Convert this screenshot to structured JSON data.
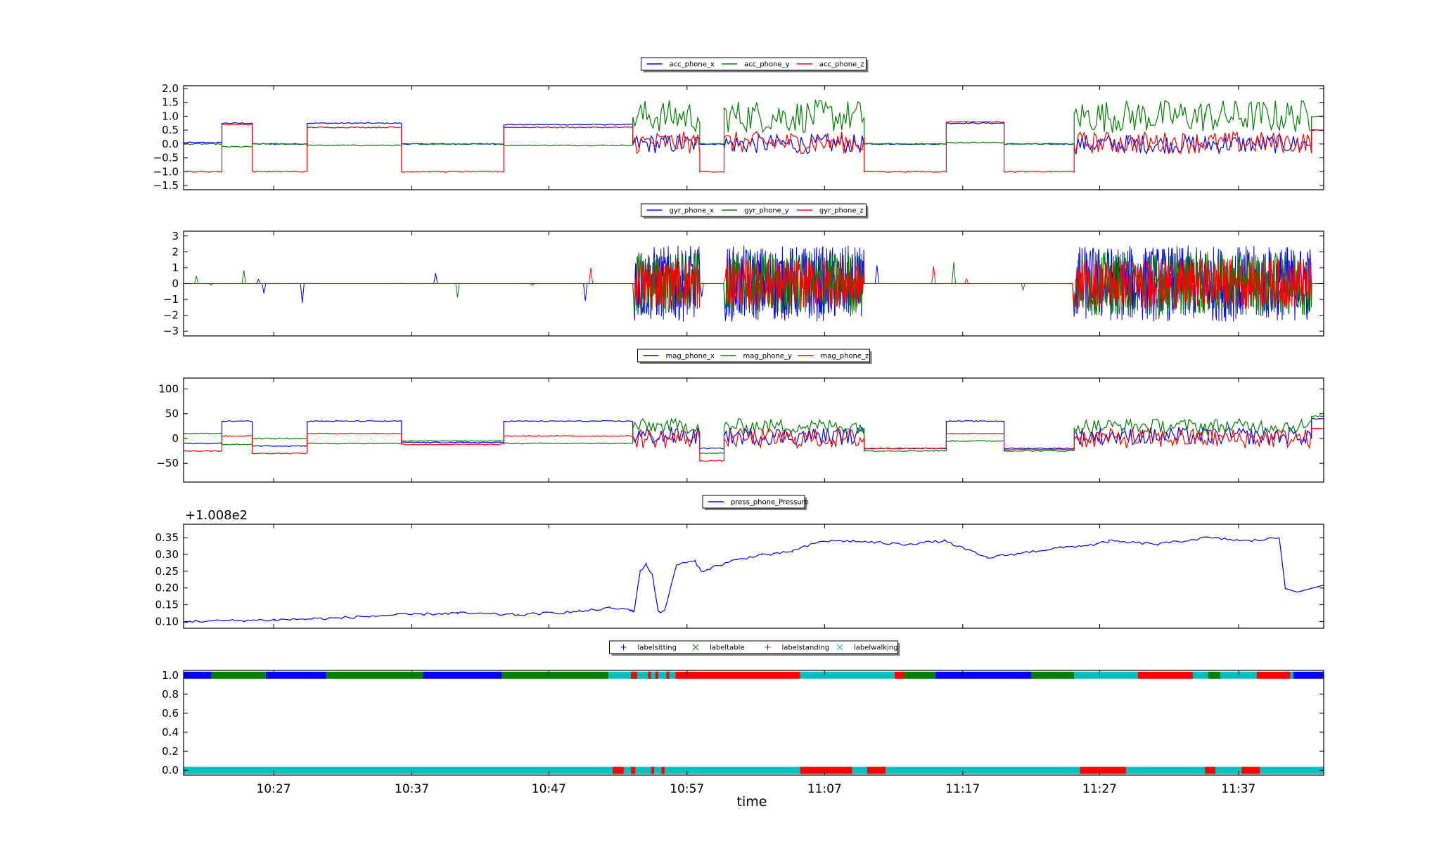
{
  "chart_data": [
    {
      "type": "line",
      "series": [
        {
          "name": "acc_phone_x",
          "color": "#0000ff",
          "segments": [
            [
              0,
              6.3,
              0.05
            ],
            [
              6.3,
              11.3,
              0.75
            ],
            [
              11.3,
              20.3,
              0.0
            ],
            [
              20.3,
              35.8,
              0.75
            ],
            [
              35.8,
              52.6,
              0.0
            ],
            [
              52.6,
              73.8,
              0.7
            ],
            [
              73.8,
              84.8,
              "active"
            ],
            [
              84.8,
              88.8,
              0.0
            ],
            [
              88.8,
              111.8,
              "active"
            ],
            [
              111.8,
              125.3,
              0.0
            ],
            [
              125.3,
              134.8,
              0.75
            ],
            [
              134.8,
              146.3,
              0.0
            ],
            [
              146.3,
              167.8,
              "active"
            ],
            [
              167.8,
              185.3,
              "active"
            ],
            [
              185.3,
              187.3,
              0.5
            ]
          ]
        },
        {
          "name": "acc_phone_y",
          "color": "#008000",
          "segments": [
            [
              0,
              6.3,
              0.0
            ],
            [
              6.3,
              11.3,
              -0.1
            ],
            [
              11.3,
              20.3,
              0.0
            ],
            [
              20.3,
              35.8,
              -0.05
            ],
            [
              35.8,
              52.6,
              0.0
            ],
            [
              52.6,
              73.8,
              -0.05
            ],
            [
              73.8,
              84.8,
              "active"
            ],
            [
              84.8,
              88.8,
              0.0
            ],
            [
              88.8,
              111.8,
              "active"
            ],
            [
              111.8,
              125.3,
              0.0
            ],
            [
              125.3,
              134.8,
              0.05
            ],
            [
              134.8,
              146.3,
              0.0
            ],
            [
              146.3,
              167.8,
              "active"
            ],
            [
              167.8,
              185.3,
              "active"
            ],
            [
              185.3,
              187.3,
              1.0
            ]
          ]
        },
        {
          "name": "acc_phone_z",
          "color": "#ff0000",
          "segments": [
            [
              0,
              6.3,
              -1.0
            ],
            [
              6.3,
              11.3,
              0.7
            ],
            [
              11.3,
              20.3,
              -1.0
            ],
            [
              20.3,
              35.8,
              0.6
            ],
            [
              35.8,
              52.6,
              -1.0
            ],
            [
              52.6,
              73.8,
              0.6
            ],
            [
              73.8,
              84.8,
              "active"
            ],
            [
              84.8,
              88.8,
              -1.0
            ],
            [
              88.8,
              111.8,
              "active"
            ],
            [
              111.8,
              125.3,
              -1.0
            ],
            [
              125.3,
              134.8,
              0.8
            ],
            [
              134.8,
              146.3,
              -1.0
            ],
            [
              146.3,
              167.8,
              "active"
            ],
            [
              167.8,
              185.3,
              "active"
            ],
            [
              185.3,
              187.3,
              0.5
            ]
          ]
        }
      ],
      "ylim": [
        -1.65,
        2.1
      ],
      "yticks": [
        "2.0",
        "1.5",
        "1.0",
        "0.5",
        "0.0",
        "−0.5",
        "−1.0",
        "−1.5"
      ],
      "ytick_values": [
        2.0,
        1.5,
        1.0,
        0.5,
        0.0,
        -0.5,
        -1.0,
        -1.5
      ],
      "legend_placement": "top-center"
    },
    {
      "type": "line",
      "series": [
        {
          "name": "gyr_phone_x",
          "color": "#0000ff"
        },
        {
          "name": "gyr_phone_y",
          "color": "#008000"
        },
        {
          "name": "gyr_phone_z",
          "color": "#ff0000"
        }
      ],
      "active_ranges": [
        [
          73.8,
          84.8
        ],
        [
          88.8,
          111.8
        ],
        [
          146.3,
          167.8
        ],
        [
          167.8,
          185.3
        ]
      ],
      "ylim": [
        -3.3,
        3.3
      ],
      "yticks": [
        "3",
        "2",
        "1",
        "0",
        "−1",
        "−2",
        "−3"
      ],
      "ytick_values": [
        3,
        2,
        1,
        0,
        -1,
        -2,
        -3
      ],
      "legend_placement": "top-center"
    },
    {
      "type": "line",
      "series": [
        {
          "name": "mag_phone_x",
          "color": "#0000ff",
          "segments": [
            [
              0,
              6.3,
              -10
            ],
            [
              6.3,
              11.3,
              35
            ],
            [
              11.3,
              20.3,
              -15
            ],
            [
              20.3,
              35.8,
              35
            ],
            [
              35.8,
              52.6,
              -8
            ],
            [
              52.6,
              73.8,
              35
            ],
            [
              73.8,
              84.8,
              "active"
            ],
            [
              84.8,
              88.8,
              -20
            ],
            [
              88.8,
              111.8,
              "active"
            ],
            [
              111.8,
              125.3,
              -20
            ],
            [
              125.3,
              134.8,
              35
            ],
            [
              134.8,
              146.3,
              -20
            ],
            [
              146.3,
              167.8,
              "active"
            ],
            [
              167.8,
              185.3,
              "active"
            ],
            [
              185.3,
              187.3,
              40
            ]
          ]
        },
        {
          "name": "mag_phone_y",
          "color": "#008000",
          "segments": [
            [
              0,
              6.3,
              10
            ],
            [
              6.3,
              11.3,
              -12
            ],
            [
              11.3,
              20.3,
              0
            ],
            [
              20.3,
              35.8,
              -10
            ],
            [
              35.8,
              52.6,
              -5
            ],
            [
              52.6,
              73.8,
              -10
            ],
            [
              73.8,
              84.8,
              "active"
            ],
            [
              84.8,
              88.8,
              -30
            ],
            [
              88.8,
              111.8,
              "active"
            ],
            [
              111.8,
              125.3,
              -25
            ],
            [
              125.3,
              134.8,
              -5
            ],
            [
              134.8,
              146.3,
              -25
            ],
            [
              146.3,
              167.8,
              "active"
            ],
            [
              167.8,
              185.3,
              "active"
            ],
            [
              185.3,
              187.3,
              45
            ]
          ]
        },
        {
          "name": "mag_phone_z",
          "color": "#ff0000",
          "segments": [
            [
              0,
              6.3,
              -25
            ],
            [
              6.3,
              11.3,
              5
            ],
            [
              11.3,
              20.3,
              -30
            ],
            [
              20.3,
              35.8,
              10
            ],
            [
              35.8,
              52.6,
              -12
            ],
            [
              52.6,
              73.8,
              5
            ],
            [
              73.8,
              84.8,
              "active"
            ],
            [
              84.8,
              88.8,
              -45
            ],
            [
              88.8,
              111.8,
              "active"
            ],
            [
              111.8,
              125.3,
              -20
            ],
            [
              125.3,
              134.8,
              10
            ],
            [
              134.8,
              146.3,
              -22
            ],
            [
              146.3,
              167.8,
              "active"
            ],
            [
              167.8,
              185.3,
              "active"
            ],
            [
              185.3,
              187.3,
              20
            ]
          ]
        }
      ],
      "ylim": [
        -88,
        122
      ],
      "yticks": [
        "100",
        "50",
        "0",
        "−50"
      ],
      "ytick_values": [
        100,
        50,
        0,
        -50
      ],
      "legend_placement": "top-center"
    },
    {
      "type": "line",
      "series": [
        {
          "name": "press_phone_Pressure",
          "color": "#0000ff",
          "x": [
            0,
            15,
            25,
            35,
            45,
            55,
            65,
            70,
            73.5,
            74,
            75,
            76,
            77,
            78,
            79,
            81,
            84,
            85,
            90,
            95,
            97,
            100,
            105,
            110,
            118,
            125,
            132,
            140,
            144,
            150,
            152,
            160,
            168,
            175,
            180,
            187.3
          ],
          "y": [
            0.1,
            0.105,
            0.11,
            0.12,
            0.125,
            0.12,
            0.13,
            0.14,
            0.135,
            0.13,
            0.25,
            0.27,
            0.24,
            0.13,
            0.13,
            0.27,
            0.28,
            0.25,
            0.28,
            0.3,
            0.3,
            0.31,
            0.34,
            0.34,
            0.33,
            0.34,
            0.29,
            0.31,
            0.32,
            0.33,
            0.34,
            0.33,
            0.35,
            0.34,
            0.35,
            0.35
          ],
          "x_tail": [
            180,
            181,
            183,
            187.3
          ],
          "y_tail": [
            0.35,
            0.2,
            0.19,
            0.21
          ]
        }
      ],
      "offset_label": "+1.008e2",
      "ylim": [
        0.08,
        0.39
      ],
      "yticks": [
        "0.35",
        "0.30",
        "0.25",
        "0.20",
        "0.15",
        "0.10"
      ],
      "ytick_values": [
        0.35,
        0.3,
        0.25,
        0.2,
        0.15,
        0.1
      ],
      "legend_placement": "top-center"
    },
    {
      "type": "scatter",
      "series": [
        {
          "name": "labelsitting",
          "marker": "+",
          "color": "#0000ff",
          "ranges_at_1": [
            [
              0,
              4.6
            ],
            [
              13.5,
              23.5
            ],
            [
              39.3,
              52.3
            ],
            [
              123.5,
              139.3
            ],
            [
              182.3,
              187.3
            ]
          ]
        },
        {
          "name": "labeltable",
          "marker": "x",
          "color": "#008000",
          "ranges_at_1": [
            [
              4.6,
              13.5
            ],
            [
              23.5,
              39.3
            ],
            [
              52.3,
              69.8
            ],
            [
              118.3,
              123.5
            ],
            [
              139.3,
              146.3
            ],
            [
              168.3,
              170.3
            ]
          ]
        },
        {
          "name": "labelstanding",
          "marker": "+",
          "color": "#ff0000",
          "ranges_at_1": [
            [
              73.5,
              74.5
            ],
            [
              76.3,
              76.8
            ],
            [
              77.5,
              78.0
            ],
            [
              79.3,
              79.8
            ],
            [
              80.8,
              101.3
            ],
            [
              116.8,
              118.3
            ],
            [
              156.8,
              165.8
            ],
            [
              176.3,
              181.8
            ]
          ],
          "ranges_at_0": [
            [
              70.5,
              72.3
            ],
            [
              73.5,
              74.2
            ],
            [
              76.8,
              77.3
            ],
            [
              78.5,
              79.0
            ],
            [
              101.3,
              109.8
            ],
            [
              112.3,
              115.3
            ],
            [
              147.3,
              154.8
            ],
            [
              167.8,
              169.5
            ],
            [
              173.8,
              176.8
            ]
          ]
        },
        {
          "name": "labelwalking",
          "marker": "x",
          "color": "#00bfbf",
          "ranges_at_1": [
            [
              69.8,
              80.8
            ],
            [
              101.3,
              116.8
            ],
            [
              146.3,
              156.8
            ],
            [
              165.8,
              168.3
            ],
            [
              170.3,
              176.3
            ],
            [
              181.8,
              182.3
            ]
          ],
          "ranges_at_0": [
            [
              0,
              187.3
            ]
          ]
        }
      ],
      "ylim": [
        -0.05,
        1.05
      ],
      "yticks": [
        "1.0",
        "0.8",
        "0.6",
        "0.4",
        "0.2",
        "0.0"
      ],
      "ytick_values": [
        1.0,
        0.8,
        0.6,
        0.4,
        0.2,
        0.0
      ],
      "legend_placement": "top-center"
    }
  ],
  "x_axis": {
    "label": "time",
    "range": [
      0,
      187.3
    ],
    "ticks": [
      {
        "label": "10:27",
        "value": 14.8
      },
      {
        "label": "10:37",
        "value": 37.5
      },
      {
        "label": "10:47",
        "value": 60.0
      },
      {
        "label": "10:57",
        "value": 82.7
      },
      {
        "label": "11:07",
        "value": 105.3
      },
      {
        "label": "11:17",
        "value": 128.0
      },
      {
        "label": "11:27",
        "value": 150.5
      },
      {
        "label": "11:37",
        "value": 173.3
      }
    ]
  }
}
